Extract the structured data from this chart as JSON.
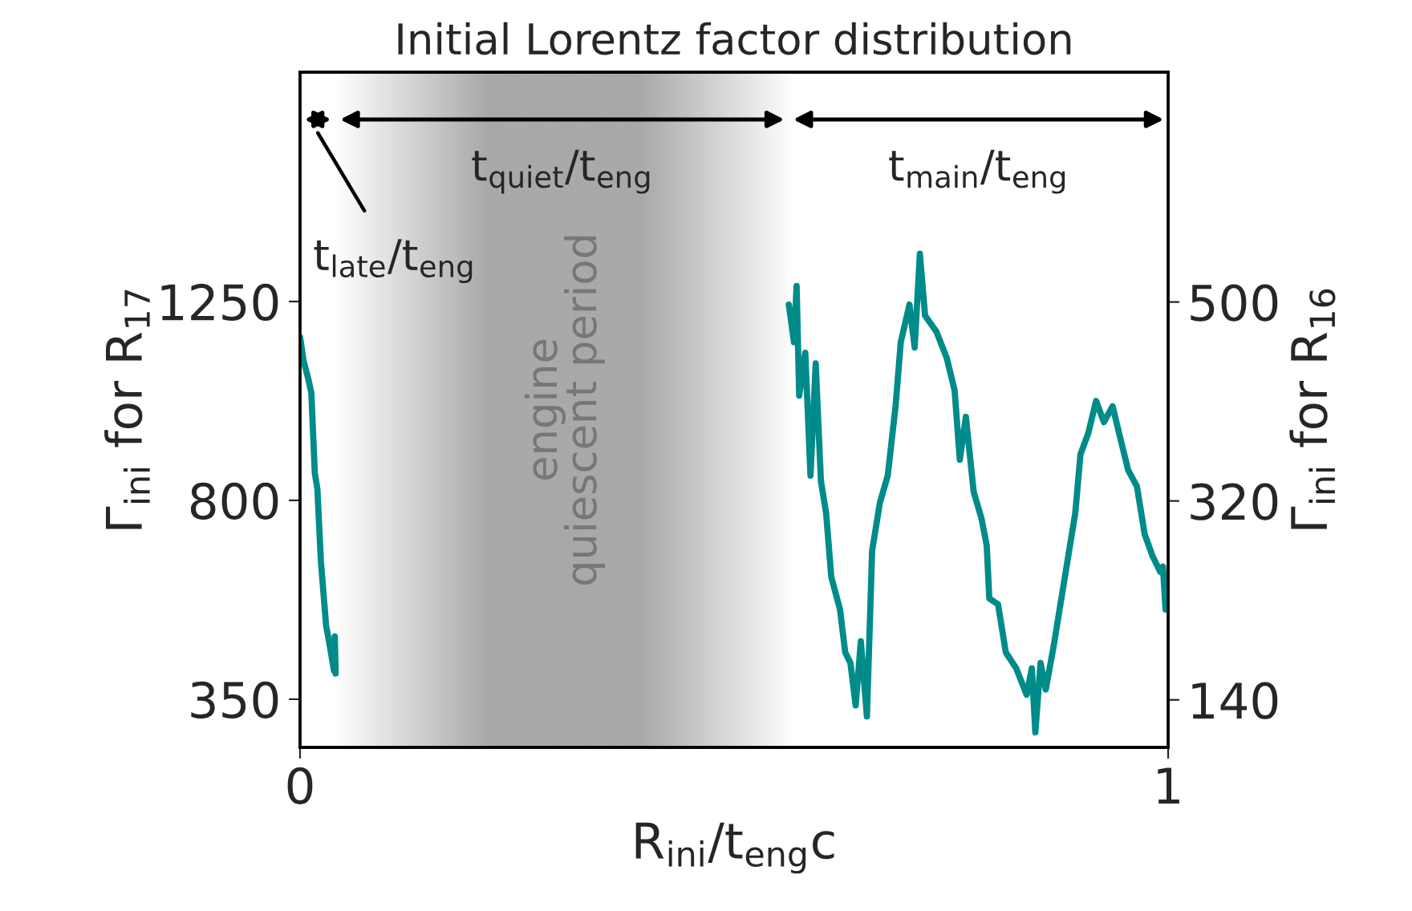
{
  "chart_data": {
    "type": "line",
    "title": "Initial Lorentz factor distribution",
    "xlabel": "R$_{ini}$/t$_{eng}$c",
    "ylabel": "Γ$_{ini}$ for R$_{17}$",
    "y2label": "Γ$_{ini}$ for R$_{16}$",
    "xlim": [
      0,
      1
    ],
    "xticks": [
      0,
      1
    ],
    "ylim": [
      241,
      1769
    ],
    "yticks": [
      350,
      800,
      1250
    ],
    "y2lim": [
      97,
      708
    ],
    "y2ticks": [
      140,
      320,
      500
    ],
    "grid": false,
    "series": [
      {
        "color": "#008b8b",
        "x": [
          0,
          0.004,
          0.009,
          0.013,
          0.017,
          0.02,
          0.024,
          0.03,
          0.035,
          0.039,
          0.04,
          0.041
        ],
        "values": [
          1170,
          1116,
          1079,
          1043,
          862,
          825,
          662,
          517,
          463,
          415,
          492,
          408
        ]
      },
      {
        "color": "#008b8b",
        "x": [
          0.563,
          0.569,
          0.572,
          0.575,
          0.582,
          0.588,
          0.594,
          0.6,
          0.606,
          0.612,
          0.622,
          0.628,
          0.634,
          0.64,
          0.646,
          0.653,
          0.659,
          0.668,
          0.677,
          0.686,
          0.692,
          0.702,
          0.708,
          0.714,
          0.72,
          0.733,
          0.745,
          0.754,
          0.76,
          0.767,
          0.776,
          0.785,
          0.791,
          0.794,
          0.804,
          0.813,
          0.825,
          0.837,
          0.843,
          0.847,
          0.853,
          0.859,
          0.868,
          0.88,
          0.893,
          0.899,
          0.908,
          0.917,
          0.926,
          0.936,
          0.945,
          0.954,
          0.964,
          0.973,
          0.982,
          0.991,
          0.994,
          0.997
        ],
        "values": [
          1243,
          1158,
          1285,
          1037,
          1134,
          856,
          1110,
          844,
          771,
          626,
          553,
          456,
          432,
          336,
          481,
          311,
          686,
          795,
          856,
          1013,
          1158,
          1243,
          1146,
          1358,
          1218,
          1182,
          1122,
          1049,
          892,
          989,
          819,
          759,
          698,
          578,
          565,
          456,
          420,
          360,
          420,
          275,
          432,
          372,
          469,
          614,
          771,
          904,
          952,
          1025,
          977,
          1013,
          940,
          868,
          832,
          723,
          674,
          638,
          650,
          553
        ]
      }
    ],
    "bands": [
      {
        "axis": "x",
        "from": 0.04,
        "to": 0.57,
        "label": "engine\nquiescent period",
        "color": "#a9a9a9"
      }
    ],
    "annotations": [
      "t$_{late}$/t$_{eng}$",
      "t$_{quiet}$/t$_{eng}$",
      "t$_{main}$/t$_{eng}$"
    ]
  }
}
